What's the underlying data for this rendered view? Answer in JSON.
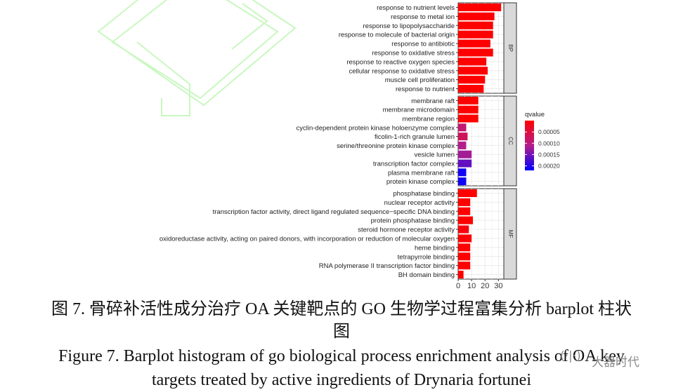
{
  "chart_data": {
    "type": "bar",
    "orientation": "horizontal",
    "title": "",
    "xlabel": "",
    "ylabel": "",
    "xlim": [
      0,
      34
    ],
    "xticks": [
      0,
      10,
      20,
      30
    ],
    "grid": true,
    "legend": {
      "title": "qvalue",
      "placement": "right",
      "ticks": [
        "0.00005",
        "0.00010",
        "0.00015",
        "0.00020"
      ],
      "tick_values": [
        5e-05,
        0.0001,
        0.00015,
        0.0002
      ],
      "range": [
        0.0,
        0.00022
      ],
      "color_low": "#ff0000",
      "color_high": "#0000ff"
    },
    "facets": [
      {
        "name": "BP",
        "terms": [
          {
            "label": "response to nutrient levels",
            "value": 32,
            "qvalue": 0.0
          },
          {
            "label": "response to metal ion",
            "value": 27,
            "qvalue": 0.0
          },
          {
            "label": "response to lipopolysaccharide",
            "value": 26,
            "qvalue": 0.0
          },
          {
            "label": "response to molecule of bacterial origin",
            "value": 26,
            "qvalue": 0.0
          },
          {
            "label": "response to antibiotic",
            "value": 24,
            "qvalue": 0.0
          },
          {
            "label": "response to oxidative stress",
            "value": 26,
            "qvalue": 0.0
          },
          {
            "label": "response to reactive oxygen species",
            "value": 21,
            "qvalue": 0.0
          },
          {
            "label": "cellular response to oxidative stress",
            "value": 22,
            "qvalue": 0.0
          },
          {
            "label": "muscle cell proliferation",
            "value": 20,
            "qvalue": 0.0
          },
          {
            "label": "response to nutrient",
            "value": 19,
            "qvalue": 0.0
          }
        ]
      },
      {
        "name": "CC",
        "terms": [
          {
            "label": "membrane raft",
            "value": 15,
            "qvalue": 0.0
          },
          {
            "label": "membrane microdomain",
            "value": 15,
            "qvalue": 0.0
          },
          {
            "label": "membrane region",
            "value": 15,
            "qvalue": 0.0
          },
          {
            "label": "cyclin-dependent protein kinase holoenzyme complex",
            "value": 6,
            "qvalue": 9e-05
          },
          {
            "label": "ficolin-1-rich granule lumen",
            "value": 7,
            "qvalue": 7e-05
          },
          {
            "label": "serine/threonine protein kinase complex",
            "value": 6,
            "qvalue": 0.00011
          },
          {
            "label": "vesicle lumen",
            "value": 10,
            "qvalue": 0.00012
          },
          {
            "label": "transcription factor complex",
            "value": 10,
            "qvalue": 0.00016
          },
          {
            "label": "plasma membrane raft",
            "value": 6,
            "qvalue": 0.00021
          },
          {
            "label": "protein kinase complex",
            "value": 6,
            "qvalue": 0.00021
          }
        ]
      },
      {
        "name": "MF",
        "terms": [
          {
            "label": "phosphatase binding",
            "value": 14,
            "qvalue": 0.0
          },
          {
            "label": "nuclear receptor activity",
            "value": 9,
            "qvalue": 0.0
          },
          {
            "label": "transcription factor activity, direct ligand regulated sequence−specific DNA binding",
            "value": 9,
            "qvalue": 0.0
          },
          {
            "label": "protein phosphatase binding",
            "value": 11,
            "qvalue": 0.0
          },
          {
            "label": "steroid hormone receptor activity",
            "value": 8,
            "qvalue": 1e-05
          },
          {
            "label": "oxidoreductase activity, acting on paired donors, with incorporation or reduction of molecular oxygen",
            "value": 10,
            "qvalue": 0.0
          },
          {
            "label": "heme binding",
            "value": 9,
            "qvalue": 0.0
          },
          {
            "label": "tetrapyrrole binding",
            "value": 9,
            "qvalue": 0.0
          },
          {
            "label": "RNA polymerase II transcription factor binding",
            "value": 9,
            "qvalue": 0.0
          },
          {
            "label": "BH domain binding",
            "value": 4,
            "qvalue": 0.0
          }
        ]
      }
    ]
  },
  "caption": {
    "cn_line1": "图 7. 骨碎补活性成分治疗 OA 关键靶点的 GO 生物学过程富集分析 barplot 柱状",
    "cn_line2": "图",
    "en_line1": "Figure 7. Barplot histogram of go biological process enrichment analysis of OA key",
    "en_line2": "targets treated by active ingredients of Drynaria fortunei"
  },
  "watermark": {
    "badge": "(·|·)",
    "text": "大器时代"
  }
}
